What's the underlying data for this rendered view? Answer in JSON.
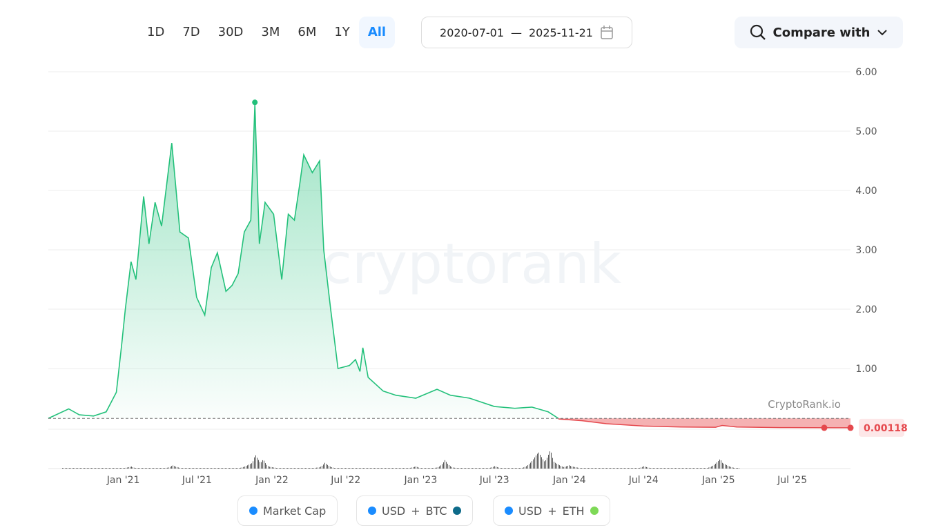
{
  "toolbar": {
    "periods": [
      "1D",
      "7D",
      "30D",
      "3M",
      "6M",
      "1Y",
      "All"
    ],
    "active_period": "All",
    "date_from": "2020-07-01",
    "date_sep": "—",
    "date_to": "2025-11-21",
    "compare_label": "Compare with"
  },
  "watermark": "cryptorank",
  "source_label": "CryptoRank.io",
  "legend": [
    {
      "label": "Market Cap",
      "dot": "#1a8cff"
    },
    {
      "label": "USD",
      "plus": "+",
      "label2": "BTC",
      "dot": "#1a8cff",
      "dot2": "#0e6b8a"
    },
    {
      "label": "USD",
      "plus": "+",
      "label2": "ETH",
      "dot": "#1a8cff",
      "dot2": "#7ed957"
    }
  ],
  "chart_data": {
    "type": "area",
    "xrange": [
      "2020-07-01",
      "2025-11-21"
    ],
    "ylim": [
      0,
      6
    ],
    "yticks": [
      "6.00",
      "5.00",
      "4.00",
      "3.00",
      "2.00",
      "1.00"
    ],
    "xticks": [
      {
        "label": "Jan '21",
        "date": "2021-01-01"
      },
      {
        "label": "Jul '21",
        "date": "2021-07-01"
      },
      {
        "label": "Jan '22",
        "date": "2022-01-01"
      },
      {
        "label": "Jul '22",
        "date": "2022-07-01"
      },
      {
        "label": "Jan '23",
        "date": "2023-01-01"
      },
      {
        "label": "Jul '23",
        "date": "2023-07-01"
      },
      {
        "label": "Jan '24",
        "date": "2024-01-01"
      },
      {
        "label": "Jul '24",
        "date": "2024-07-01"
      },
      {
        "label": "Jan '25",
        "date": "2025-01-01"
      },
      {
        "label": "Jul '25",
        "date": "2025-07-01"
      }
    ],
    "baseline_value": 0.16,
    "current_value_label": "0.00118",
    "colors": {
      "up": "#22c07a",
      "down": "#e5484d",
      "down_fill": "#f3a3a5"
    },
    "series_above": [
      [
        "2020-07-01",
        0.16
      ],
      [
        "2020-08-20",
        0.32
      ],
      [
        "2020-09-15",
        0.22
      ],
      [
        "2020-10-20",
        0.2
      ],
      [
        "2020-11-20",
        0.27
      ],
      [
        "2020-12-15",
        0.6
      ],
      [
        "2020-12-28",
        1.4
      ],
      [
        "2021-01-06",
        2.0
      ],
      [
        "2021-01-20",
        2.8
      ],
      [
        "2021-02-01",
        2.5
      ],
      [
        "2021-02-20",
        3.9
      ],
      [
        "2021-03-05",
        3.1
      ],
      [
        "2021-03-20",
        3.8
      ],
      [
        "2021-04-05",
        3.4
      ],
      [
        "2021-04-30",
        4.8
      ],
      [
        "2021-05-20",
        3.3
      ],
      [
        "2021-06-10",
        3.2
      ],
      [
        "2021-06-30",
        2.2
      ],
      [
        "2021-07-20",
        1.9
      ],
      [
        "2021-08-05",
        2.7
      ],
      [
        "2021-08-20",
        2.95
      ],
      [
        "2021-09-10",
        2.3
      ],
      [
        "2021-09-25",
        2.4
      ],
      [
        "2021-10-10",
        2.6
      ],
      [
        "2021-10-25",
        3.3
      ],
      [
        "2021-11-10",
        3.5
      ],
      [
        "2021-11-20",
        5.45
      ],
      [
        "2021-12-01",
        3.1
      ],
      [
        "2021-12-15",
        3.8
      ],
      [
        "2022-01-05",
        3.6
      ],
      [
        "2022-01-25",
        2.5
      ],
      [
        "2022-02-10",
        3.6
      ],
      [
        "2022-02-25",
        3.5
      ],
      [
        "2022-03-10",
        4.1
      ],
      [
        "2022-03-20",
        4.6
      ],
      [
        "2022-04-10",
        4.3
      ],
      [
        "2022-04-28",
        4.5
      ],
      [
        "2022-05-08",
        3.0
      ],
      [
        "2022-05-25",
        2.0
      ],
      [
        "2022-06-12",
        1.0
      ],
      [
        "2022-07-10",
        1.05
      ],
      [
        "2022-07-25",
        1.15
      ],
      [
        "2022-08-05",
        0.95
      ],
      [
        "2022-08-12",
        1.35
      ],
      [
        "2022-08-25",
        0.85
      ],
      [
        "2022-10-01",
        0.62
      ],
      [
        "2022-11-01",
        0.55
      ],
      [
        "2022-12-20",
        0.5
      ],
      [
        "2023-02-10",
        0.65
      ],
      [
        "2023-03-15",
        0.55
      ],
      [
        "2023-05-01",
        0.5
      ],
      [
        "2023-07-01",
        0.36
      ],
      [
        "2023-08-20",
        0.33
      ],
      [
        "2023-10-01",
        0.35
      ],
      [
        "2023-11-10",
        0.27
      ],
      [
        "2023-12-05",
        0.16
      ]
    ],
    "series_below": [
      [
        "2023-12-05",
        0.15
      ],
      [
        "2024-02-01",
        0.12
      ],
      [
        "2024-04-01",
        0.07
      ],
      [
        "2024-07-01",
        0.03
      ],
      [
        "2024-10-01",
        0.015
      ],
      [
        "2024-12-25",
        0.01
      ],
      [
        "2025-01-10",
        0.04
      ],
      [
        "2025-02-15",
        0.015
      ],
      [
        "2025-06-01",
        0.005
      ],
      [
        "2025-10-15",
        0.002
      ],
      [
        "2025-11-21",
        0.00118
      ]
    ],
    "volume": [
      [
        "2020-07-01",
        1
      ],
      [
        "2021-01-20",
        2
      ],
      [
        "2021-05-01",
        3
      ],
      [
        "2021-11-20",
        14
      ],
      [
        "2021-12-10",
        8
      ],
      [
        "2022-05-10",
        5
      ],
      [
        "2022-12-20",
        2
      ],
      [
        "2023-03-01",
        7
      ],
      [
        "2023-07-01",
        2
      ],
      [
        "2023-10-15",
        22
      ],
      [
        "2023-11-15",
        18
      ],
      [
        "2024-01-01",
        4
      ],
      [
        "2024-07-01",
        2
      ],
      [
        "2025-01-05",
        11
      ],
      [
        "2025-03-01",
        1
      ],
      [
        "2025-11-21",
        0
      ]
    ]
  }
}
